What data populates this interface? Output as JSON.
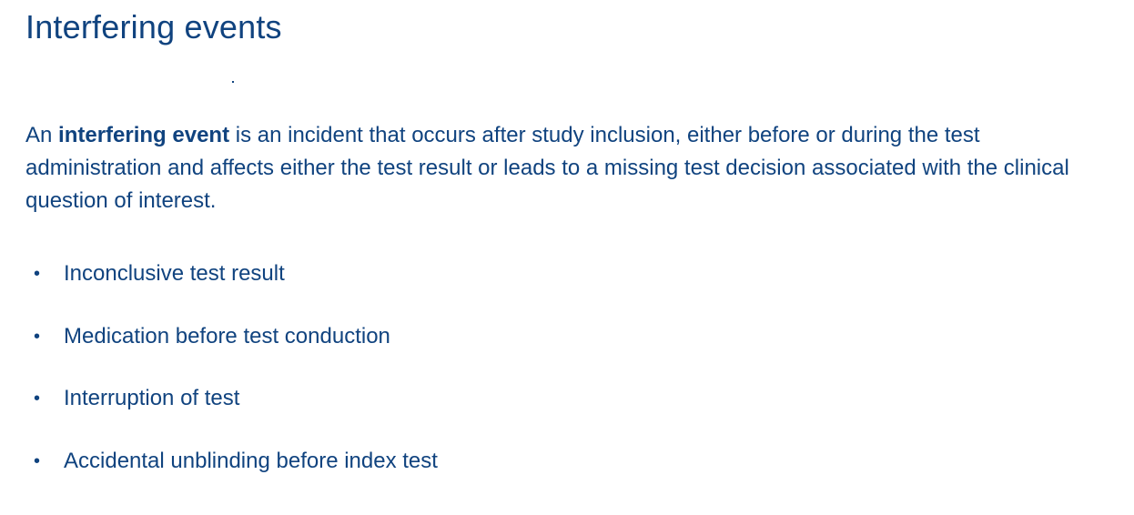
{
  "slide": {
    "title": "Interfering events",
    "definition": {
      "prefix": "An ",
      "term": "interfering event",
      "suffix": " is an incident that occurs after study inclusion, either before or during the test administration and affects either the test result or leads to a missing test decision associated with the clinical question of interest."
    },
    "bullets": [
      "Inconclusive test result",
      "Medication before test conduction",
      "Interruption of test",
      "Accidental unblinding before index test"
    ],
    "bullet_symbol": "•"
  },
  "colors": {
    "text": "#10437f",
    "background": "#ffffff"
  }
}
